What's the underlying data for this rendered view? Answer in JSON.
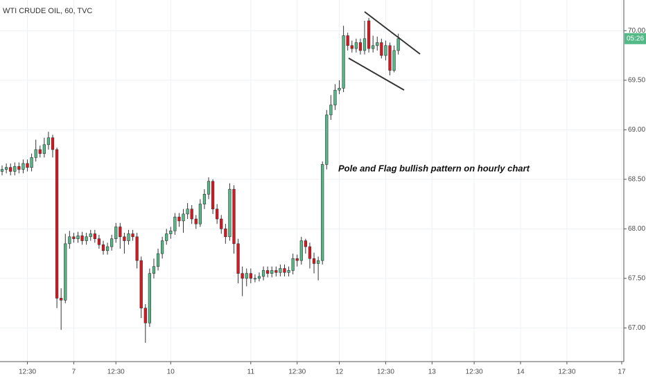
{
  "chart_data": {
    "type": "candlestick",
    "title": "WTI CRUDE OIL, 60, TVC",
    "annotation": "Pole and Flag bullish pattern on hourly chart",
    "countdown": "05:26",
    "up_color": "#53b987",
    "down_color": "#e0141e",
    "grid": true,
    "x": [
      0,
      1,
      2,
      3,
      4,
      5,
      6,
      7,
      8,
      9,
      10,
      11,
      12,
      13,
      14,
      15,
      16,
      17,
      18,
      19,
      20,
      21,
      22,
      23,
      24,
      25,
      26,
      27,
      28,
      29,
      30,
      31,
      32,
      33,
      34,
      35,
      36,
      37,
      38,
      39,
      40,
      41,
      42,
      43,
      44,
      45,
      46,
      47,
      48,
      49,
      50,
      51,
      52,
      53,
      54,
      55,
      56,
      57,
      58,
      59,
      60,
      61,
      62,
      63,
      64,
      65,
      66,
      67,
      68,
      69,
      70,
      71,
      72,
      73,
      74,
      75,
      76,
      77,
      78,
      79,
      80,
      81,
      82,
      83,
      84,
      85,
      86,
      87,
      88,
      89,
      90,
      91,
      92,
      93,
      94
    ],
    "open": [
      68.58,
      68.6,
      68.62,
      68.58,
      68.63,
      68.6,
      68.66,
      68.62,
      68.72,
      68.8,
      68.76,
      68.85,
      68.92,
      68.8,
      67.3,
      67.28,
      67.85,
      67.92,
      67.9,
      67.93,
      67.88,
      67.92,
      67.95,
      67.9,
      67.84,
      67.78,
      67.82,
      67.9,
      68.02,
      67.92,
      67.88,
      67.95,
      67.92,
      67.68,
      67.2,
      67.05,
      67.55,
      67.62,
      67.75,
      67.88,
      67.95,
      67.98,
      68.12,
      68.08,
      68.15,
      68.2,
      68.1,
      68.05,
      68.25,
      68.35,
      68.48,
      68.2,
      68.1,
      68.0,
      67.92,
      68.4,
      67.85,
      67.55,
      67.5,
      67.55,
      67.5,
      67.5,
      67.52,
      67.58,
      67.55,
      67.58,
      67.56,
      67.6,
      67.56,
      67.58,
      67.7,
      67.68,
      67.88,
      67.82,
      67.7,
      67.65,
      67.68,
      68.65,
      69.15,
      69.25,
      69.4,
      69.42,
      69.95,
      69.85,
      69.82,
      69.88,
      69.8,
      70.1,
      69.82,
      69.85,
      69.88,
      69.75,
      69.85,
      69.6,
      69.8
    ],
    "high": [
      68.64,
      68.66,
      68.66,
      68.67,
      68.67,
      68.7,
      68.7,
      68.76,
      68.9,
      68.84,
      68.92,
      68.98,
      68.95,
      68.82,
      67.4,
      67.95,
      67.98,
      67.96,
      67.97,
      67.97,
      67.96,
      67.99,
      67.99,
      67.94,
      67.88,
      67.86,
      67.94,
      68.06,
      68.06,
      67.96,
      67.99,
      67.99,
      67.96,
      67.72,
      67.24,
      67.6,
      67.7,
      67.8,
      67.92,
      68.0,
      68.02,
      68.16,
      68.16,
      68.2,
      68.26,
      68.24,
      68.14,
      68.3,
      68.4,
      68.52,
      68.5,
      68.25,
      68.14,
      68.05,
      68.46,
      68.44,
      67.9,
      67.62,
      67.6,
      67.6,
      67.54,
      67.56,
      67.62,
      67.62,
      67.62,
      67.62,
      67.64,
      67.64,
      67.62,
      67.75,
      67.74,
      67.92,
      67.9,
      67.86,
      67.76,
      67.72,
      68.68,
      69.2,
      69.35,
      69.46,
      69.5,
      70.05,
      69.98,
      69.9,
      69.92,
      69.92,
      70.1,
      70.13,
      69.95,
      69.94,
      69.92,
      69.9,
      69.88,
      69.85,
      69.97
    ],
    "low": [
      68.54,
      68.56,
      68.54,
      68.54,
      68.56,
      68.56,
      68.58,
      68.58,
      68.68,
      68.72,
      68.72,
      68.8,
      68.72,
      67.2,
      66.98,
      67.25,
      67.8,
      67.86,
      67.86,
      67.84,
      67.84,
      67.88,
      67.86,
      67.8,
      67.74,
      67.74,
      67.78,
      67.86,
      67.8,
      67.75,
      67.84,
      67.88,
      67.6,
      67.1,
      66.85,
      67.01,
      67.5,
      67.58,
      67.7,
      67.84,
      67.9,
      67.94,
      68.02,
      67.96,
      68.1,
      68.05,
      68.0,
      68.02,
      68.2,
      68.3,
      68.15,
      68.05,
      67.95,
      67.85,
      67.88,
      67.75,
      67.45,
      67.32,
      67.42,
      67.45,
      67.46,
      67.47,
      67.48,
      67.51,
      67.51,
      67.52,
      67.52,
      67.52,
      67.52,
      67.54,
      67.62,
      67.64,
      67.75,
      67.6,
      67.55,
      67.48,
      67.64,
      68.6,
      69.1,
      69.2,
      69.36,
      69.38,
      69.8,
      69.78,
      69.78,
      69.76,
      69.76,
      69.78,
      69.78,
      69.8,
      69.72,
      69.7,
      69.55,
      69.58,
      69.76
    ],
    "close": [
      68.6,
      68.62,
      68.58,
      68.63,
      68.6,
      68.66,
      68.62,
      68.72,
      68.8,
      68.76,
      68.85,
      68.92,
      68.8,
      67.3,
      67.28,
      67.85,
      67.92,
      67.9,
      67.93,
      67.88,
      67.92,
      67.95,
      67.9,
      67.84,
      67.78,
      67.82,
      67.9,
      68.02,
      67.92,
      67.88,
      67.95,
      67.92,
      67.68,
      67.2,
      67.05,
      67.55,
      67.62,
      67.75,
      67.88,
      67.95,
      67.98,
      68.12,
      68.08,
      68.15,
      68.2,
      68.1,
      68.05,
      68.25,
      68.35,
      68.48,
      68.2,
      68.1,
      68.0,
      67.92,
      68.4,
      67.85,
      67.55,
      67.5,
      67.55,
      67.5,
      67.5,
      67.52,
      67.58,
      67.55,
      67.58,
      67.56,
      67.6,
      67.56,
      67.58,
      67.7,
      67.68,
      67.88,
      67.82,
      67.7,
      67.65,
      67.68,
      68.65,
      69.15,
      69.25,
      69.4,
      69.42,
      69.95,
      69.85,
      69.82,
      69.88,
      69.8,
      69.92,
      69.82,
      69.85,
      69.88,
      69.75,
      69.85,
      69.6,
      69.8,
      69.92
    ],
    "xlim": [
      -0.5,
      147.5
    ],
    "xticks": [
      {
        "value": 6,
        "label": "12:30"
      },
      {
        "value": 17,
        "label": "7"
      },
      {
        "value": 27,
        "label": "12:30"
      },
      {
        "value": 40,
        "label": "10"
      },
      {
        "value": 59,
        "label": "11"
      },
      {
        "value": 70,
        "label": "12:30"
      },
      {
        "value": 80,
        "label": "12"
      },
      {
        "value": 91,
        "label": "12:30"
      },
      {
        "value": 102,
        "label": "13"
      },
      {
        "value": 112,
        "label": "12:30"
      },
      {
        "value": 123,
        "label": "14"
      },
      {
        "value": 134,
        "label": "12:30"
      },
      {
        "value": 147,
        "label": "17"
      }
    ],
    "ylim": [
      66.66,
      70.31
    ],
    "yticks": [
      {
        "value": 67,
        "label": "67.00"
      },
      {
        "value": 67.5,
        "label": "67.50"
      },
      {
        "value": 68,
        "label": "68.00"
      },
      {
        "value": 68.5,
        "label": "68.50"
      },
      {
        "value": 69,
        "label": "69.00"
      },
      {
        "value": 69.5,
        "label": "69.50"
      },
      {
        "value": 70,
        "label": "70.00"
      }
    ]
  }
}
